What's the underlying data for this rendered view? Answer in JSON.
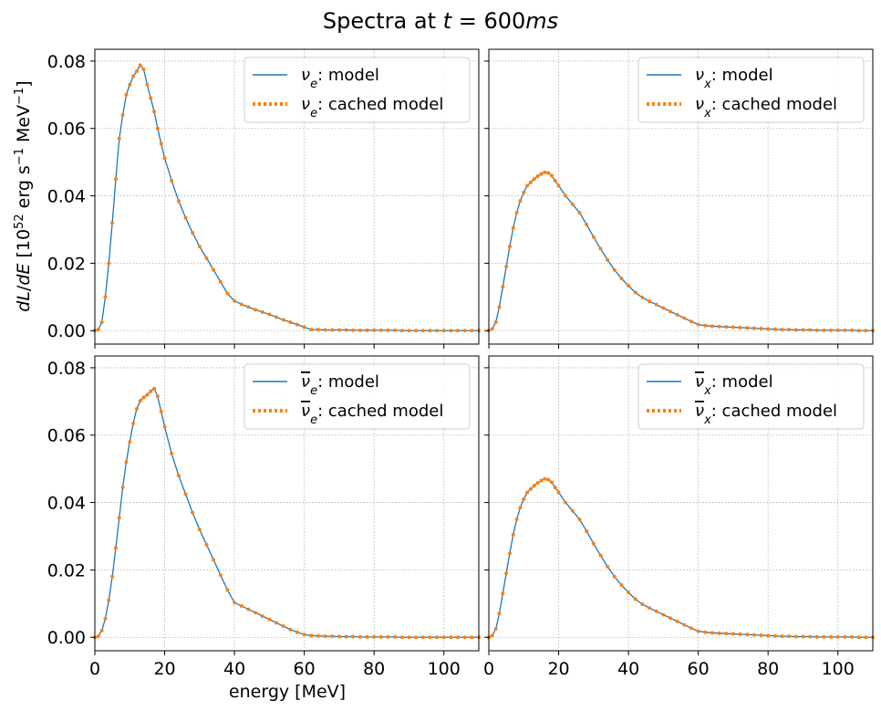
{
  "chart_data": {
    "type": "line",
    "title": "Spectra at t = 600ms",
    "xlabel": "energy [MeV]",
    "ylabel": "dL/dE [10^52 erg s^-1 MeV^-1]",
    "xlim": [
      0,
      110
    ],
    "ylim": [
      -0.004,
      0.0835
    ],
    "xticks": [
      "0",
      "20",
      "40",
      "60",
      "80",
      "100"
    ],
    "yticks": [
      "0.00",
      "0.02",
      "0.04",
      "0.06",
      "0.08"
    ],
    "grid": true,
    "legend_placement": "top-right",
    "colors": {
      "model": "#1f77b4",
      "cached": "#ff7f0e"
    },
    "panels": [
      {
        "id": "nu-e",
        "series": [
          {
            "name": "ν_e: model",
            "legend_prefix": "ν",
            "legend_sub": "e",
            "legend_bar": false,
            "legend_suffix": ": model",
            "style": "solid"
          },
          {
            "name": "ν_e: cached model",
            "legend_prefix": "ν",
            "legend_sub": "e",
            "legend_bar": false,
            "legend_suffix": ": cached model",
            "style": "dotted"
          }
        ],
        "x": [
          0,
          1,
          2,
          3,
          4,
          5,
          6,
          7,
          8,
          9,
          10,
          11,
          12,
          13,
          14,
          15,
          16,
          17,
          18,
          19,
          20,
          22,
          24,
          26,
          28,
          30,
          32,
          34,
          36,
          38,
          40,
          42,
          44,
          46,
          48,
          50,
          52,
          54,
          56,
          58,
          60,
          62,
          64,
          66,
          68,
          70,
          72,
          74,
          76,
          78,
          80,
          82,
          84,
          86,
          88,
          90,
          92,
          94,
          96,
          98,
          100,
          102,
          104,
          106,
          108,
          110
        ],
        "values": [
          0.0,
          0.0003,
          0.0025,
          0.01,
          0.02,
          0.032,
          0.045,
          0.057,
          0.064,
          0.07,
          0.073,
          0.0755,
          0.077,
          0.0788,
          0.0775,
          0.073,
          0.069,
          0.065,
          0.06,
          0.0555,
          0.0512,
          0.0445,
          0.0385,
          0.0335,
          0.029,
          0.025,
          0.0215,
          0.018,
          0.0145,
          0.011,
          0.0088,
          0.0078,
          0.007,
          0.0062,
          0.0055,
          0.0048,
          0.004,
          0.0032,
          0.0025,
          0.0018,
          0.001,
          0.0003,
          0.0003,
          0.0002,
          0.0002,
          0.0002,
          0.0002,
          0.0001,
          0.0001,
          0.0001,
          0.0001,
          0.0001,
          0.0001,
          0.0001,
          0.0,
          0.0,
          0.0,
          0.0,
          0.0,
          0.0,
          0.0,
          0.0,
          0.0,
          0.0,
          0.0,
          0.0
        ]
      },
      {
        "id": "nu-x",
        "series": [
          {
            "name": "ν_x: model",
            "legend_prefix": "ν",
            "legend_sub": "x",
            "legend_bar": false,
            "legend_suffix": ": model",
            "style": "solid"
          },
          {
            "name": "ν_x: cached model",
            "legend_prefix": "ν",
            "legend_sub": "x",
            "legend_bar": false,
            "legend_suffix": ": cached model",
            "style": "dotted"
          }
        ],
        "x": [
          0,
          1,
          2,
          3,
          4,
          5,
          6,
          7,
          8,
          9,
          10,
          11,
          12,
          13,
          14,
          15,
          16,
          17,
          18,
          19,
          20,
          22,
          24,
          26,
          28,
          30,
          32,
          34,
          36,
          38,
          40,
          42,
          44,
          46,
          48,
          50,
          52,
          54,
          56,
          58,
          60,
          62,
          64,
          66,
          68,
          70,
          72,
          74,
          76,
          78,
          80,
          82,
          84,
          86,
          88,
          90,
          92,
          94,
          96,
          98,
          100,
          102,
          104,
          106,
          108,
          110
        ],
        "values": [
          0.0,
          0.0005,
          0.0025,
          0.007,
          0.013,
          0.019,
          0.025,
          0.0305,
          0.035,
          0.0385,
          0.041,
          0.043,
          0.044,
          0.045,
          0.0458,
          0.0465,
          0.047,
          0.0468,
          0.046,
          0.0445,
          0.043,
          0.04,
          0.0375,
          0.035,
          0.0315,
          0.0278,
          0.0243,
          0.021,
          0.018,
          0.0155,
          0.0133,
          0.0113,
          0.0098,
          0.0087,
          0.0077,
          0.0067,
          0.0057,
          0.0047,
          0.0037,
          0.0027,
          0.0018,
          0.0015,
          0.0013,
          0.0012,
          0.0011,
          0.001,
          0.0009,
          0.0008,
          0.0007,
          0.0006,
          0.0005,
          0.0004,
          0.0003,
          0.0003,
          0.0002,
          0.0002,
          0.0002,
          0.0001,
          0.0001,
          0.0001,
          0.0001,
          0.0001,
          0.0001,
          0.0,
          0.0,
          0.0
        ]
      },
      {
        "id": "nubar-e",
        "series": [
          {
            "name": "ν̄_e: model",
            "legend_prefix": "ν",
            "legend_sub": "e",
            "legend_bar": true,
            "legend_suffix": ": model",
            "style": "solid"
          },
          {
            "name": "ν̄_e: cached model",
            "legend_prefix": "ν",
            "legend_sub": "e",
            "legend_bar": true,
            "legend_suffix": ": cached model",
            "style": "dotted"
          }
        ],
        "x": [
          0,
          1,
          2,
          3,
          4,
          5,
          6,
          7,
          8,
          9,
          10,
          11,
          12,
          13,
          14,
          15,
          16,
          17,
          18,
          19,
          20,
          22,
          24,
          26,
          28,
          30,
          32,
          34,
          36,
          38,
          40,
          42,
          44,
          46,
          48,
          50,
          52,
          54,
          56,
          58,
          60,
          62,
          64,
          66,
          68,
          70,
          72,
          74,
          76,
          78,
          80,
          82,
          84,
          86,
          88,
          90,
          92,
          94,
          96,
          98,
          100,
          102,
          104,
          106,
          108,
          110
        ],
        "values": [
          0.0,
          0.0003,
          0.002,
          0.0055,
          0.011,
          0.018,
          0.0265,
          0.0355,
          0.0445,
          0.052,
          0.058,
          0.0635,
          0.0678,
          0.0702,
          0.0712,
          0.072,
          0.073,
          0.0738,
          0.0715,
          0.067,
          0.0625,
          0.0545,
          0.048,
          0.0425,
          0.037,
          0.032,
          0.0275,
          0.023,
          0.0185,
          0.014,
          0.0103,
          0.0093,
          0.0083,
          0.0073,
          0.0063,
          0.0053,
          0.0043,
          0.0033,
          0.0023,
          0.0015,
          0.0008,
          0.0005,
          0.0004,
          0.0003,
          0.0003,
          0.0002,
          0.0002,
          0.0002,
          0.0001,
          0.0001,
          0.0001,
          0.0001,
          0.0001,
          0.0001,
          0.0,
          0.0,
          0.0,
          0.0,
          0.0,
          0.0,
          0.0,
          0.0,
          0.0,
          0.0,
          0.0,
          0.0
        ]
      },
      {
        "id": "nubar-x",
        "series": [
          {
            "name": "ν̄_x: model",
            "legend_prefix": "ν",
            "legend_sub": "x",
            "legend_bar": true,
            "legend_suffix": ": model",
            "style": "solid"
          },
          {
            "name": "ν̄_x: cached model",
            "legend_prefix": "ν",
            "legend_sub": "x",
            "legend_bar": true,
            "legend_suffix": ": cached model",
            "style": "dotted"
          }
        ],
        "x": [
          0,
          1,
          2,
          3,
          4,
          5,
          6,
          7,
          8,
          9,
          10,
          11,
          12,
          13,
          14,
          15,
          16,
          17,
          18,
          19,
          20,
          22,
          24,
          26,
          28,
          30,
          32,
          34,
          36,
          38,
          40,
          42,
          44,
          46,
          48,
          50,
          52,
          54,
          56,
          58,
          60,
          62,
          64,
          66,
          68,
          70,
          72,
          74,
          76,
          78,
          80,
          82,
          84,
          86,
          88,
          90,
          92,
          94,
          96,
          98,
          100,
          102,
          104,
          106,
          108,
          110
        ],
        "values": [
          0.0,
          0.0005,
          0.0025,
          0.007,
          0.013,
          0.019,
          0.025,
          0.0305,
          0.035,
          0.0385,
          0.041,
          0.043,
          0.044,
          0.045,
          0.0458,
          0.0465,
          0.047,
          0.0468,
          0.046,
          0.0445,
          0.043,
          0.04,
          0.0375,
          0.035,
          0.0315,
          0.0278,
          0.0243,
          0.021,
          0.018,
          0.0155,
          0.0133,
          0.0113,
          0.0098,
          0.0087,
          0.0077,
          0.0067,
          0.0057,
          0.0047,
          0.0037,
          0.0027,
          0.0018,
          0.0015,
          0.0013,
          0.0012,
          0.0011,
          0.001,
          0.0009,
          0.0008,
          0.0007,
          0.0006,
          0.0005,
          0.0004,
          0.0003,
          0.0003,
          0.0002,
          0.0002,
          0.0002,
          0.0001,
          0.0001,
          0.0001,
          0.0001,
          0.0001,
          0.0001,
          0.0,
          0.0,
          0.0
        ]
      }
    ]
  }
}
